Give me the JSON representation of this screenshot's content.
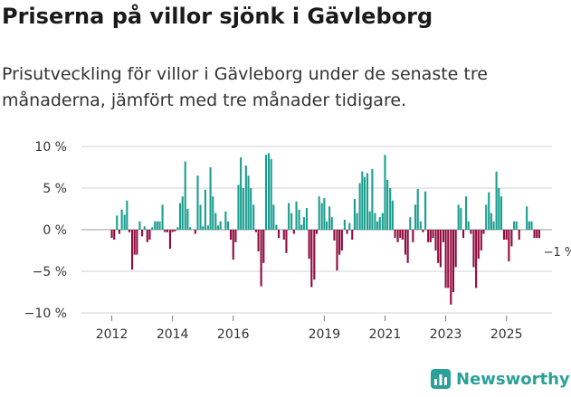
{
  "header": {
    "title": "Priserna på villor sjönk i Gävleborg",
    "subtitle": "Prisutveckling för villor i Gävleborg under de senaste tre månaderna, jämfört med tre månader tidigare."
  },
  "brand": {
    "name": "Newsworthy",
    "icon": "bar-chart-icon"
  },
  "colors": {
    "positive": "#1a9e8f",
    "negative": "#8f0a3d",
    "grid": "#d0d0d0",
    "text": "#333333",
    "brand": "#2aa198"
  },
  "chart_data": {
    "type": "bar",
    "title": "Priserna på villor sjönk i Gävleborg",
    "ylim": [
      -10,
      10
    ],
    "y_ticks": [
      10,
      5,
      0,
      -5,
      -10
    ],
    "y_tick_labels": [
      "10 %",
      "5 %",
      "0 %",
      "−5 %",
      "−10 %"
    ],
    "x_ticks": [
      2012,
      2014,
      2016,
      2019,
      2021,
      2023,
      2025
    ],
    "x_range": [
      2011.0,
      2026.5
    ],
    "annotation": {
      "label": "−1 %",
      "x": 2026.1,
      "y": -1
    },
    "points": [
      [
        2012.0,
        -1.0
      ],
      [
        2012.08,
        -1.2
      ],
      [
        2012.17,
        1.7
      ],
      [
        2012.25,
        -0.5
      ],
      [
        2012.33,
        2.4
      ],
      [
        2012.42,
        1.8
      ],
      [
        2012.5,
        3.5
      ],
      [
        2012.58,
        -0.3
      ],
      [
        2012.67,
        -4.8
      ],
      [
        2012.75,
        -3.0
      ],
      [
        2012.83,
        -3.0
      ],
      [
        2012.92,
        1.0
      ],
      [
        2013.0,
        -0.8
      ],
      [
        2013.08,
        0.4
      ],
      [
        2013.17,
        -1.5
      ],
      [
        2013.25,
        -1.2
      ],
      [
        2013.33,
        0.3
      ],
      [
        2013.42,
        1.0
      ],
      [
        2013.5,
        1.0
      ],
      [
        2013.58,
        1.0
      ],
      [
        2013.67,
        3.0
      ],
      [
        2013.75,
        -0.3
      ],
      [
        2013.83,
        -0.3
      ],
      [
        2013.92,
        -2.3
      ],
      [
        2014.0,
        -0.3
      ],
      [
        2014.08,
        -0.2
      ],
      [
        2014.17,
        0.3
      ],
      [
        2014.25,
        3.2
      ],
      [
        2014.33,
        4.0
      ],
      [
        2014.42,
        8.2
      ],
      [
        2014.5,
        2.5
      ],
      [
        2014.58,
        0.3
      ],
      [
        2014.67,
        0.0
      ],
      [
        2014.75,
        -0.5
      ],
      [
        2014.83,
        6.5
      ],
      [
        2014.92,
        3.0
      ],
      [
        2015.0,
        0.4
      ],
      [
        2015.08,
        4.8
      ],
      [
        2015.17,
        0.5
      ],
      [
        2015.25,
        7.5
      ],
      [
        2015.33,
        4.0
      ],
      [
        2015.42,
        2.0
      ],
      [
        2015.5,
        0.5
      ],
      [
        2015.58,
        1.0
      ],
      [
        2015.67,
        0.0
      ],
      [
        2015.75,
        2.2
      ],
      [
        2015.83,
        1.0
      ],
      [
        2015.92,
        -1.2
      ],
      [
        2016.0,
        -3.6
      ],
      [
        2016.08,
        -1.5
      ],
      [
        2016.17,
        5.4
      ],
      [
        2016.25,
        8.7
      ],
      [
        2016.33,
        5.0
      ],
      [
        2016.42,
        7.7
      ],
      [
        2016.5,
        6.5
      ],
      [
        2016.58,
        5.0
      ],
      [
        2016.67,
        3.0
      ],
      [
        2016.75,
        -0.3
      ],
      [
        2016.83,
        -2.6
      ],
      [
        2016.92,
        -6.8
      ],
      [
        2017.0,
        -4.0
      ],
      [
        2017.08,
        9.0
      ],
      [
        2017.17,
        9.2
      ],
      [
        2017.25,
        8.5
      ],
      [
        2017.33,
        3.0
      ],
      [
        2017.42,
        0.6
      ],
      [
        2017.5,
        -1.0
      ],
      [
        2017.58,
        0.0
      ],
      [
        2017.67,
        -1.2
      ],
      [
        2017.75,
        -2.8
      ],
      [
        2017.83,
        3.2
      ],
      [
        2017.92,
        2.0
      ],
      [
        2018.0,
        -0.5
      ],
      [
        2018.08,
        3.4
      ],
      [
        2018.17,
        2.4
      ],
      [
        2018.25,
        0.6
      ],
      [
        2018.33,
        1.5
      ],
      [
        2018.42,
        2.6
      ],
      [
        2018.5,
        -3.5
      ],
      [
        2018.58,
        -6.9
      ],
      [
        2018.67,
        -6.0
      ],
      [
        2018.75,
        -0.5
      ],
      [
        2018.83,
        4.0
      ],
      [
        2018.92,
        3.2
      ],
      [
        2019.0,
        3.8
      ],
      [
        2019.08,
        1.0
      ],
      [
        2019.17,
        2.8
      ],
      [
        2019.25,
        1.5
      ],
      [
        2019.33,
        -1.3
      ],
      [
        2019.42,
        -4.9
      ],
      [
        2019.5,
        -3.0
      ],
      [
        2019.58,
        -2.5
      ],
      [
        2019.67,
        1.2
      ],
      [
        2019.75,
        -0.5
      ],
      [
        2019.83,
        0.8
      ],
      [
        2019.92,
        -1.2
      ],
      [
        2020.0,
        3.7
      ],
      [
        2020.08,
        2.0
      ],
      [
        2020.17,
        5.6
      ],
      [
        2020.25,
        7.0
      ],
      [
        2020.33,
        6.3
      ],
      [
        2020.42,
        6.8
      ],
      [
        2020.5,
        2.2
      ],
      [
        2020.58,
        7.3
      ],
      [
        2020.67,
        2.0
      ],
      [
        2020.75,
        1.0
      ],
      [
        2020.83,
        1.5
      ],
      [
        2020.92,
        2.0
      ],
      [
        2021.0,
        9.0
      ],
      [
        2021.08,
        6.0
      ],
      [
        2021.17,
        5.0
      ],
      [
        2021.25,
        3.5
      ],
      [
        2021.33,
        -1.0
      ],
      [
        2021.42,
        -1.5
      ],
      [
        2021.5,
        -1.0
      ],
      [
        2021.58,
        -1.2
      ],
      [
        2021.67,
        -3.0
      ],
      [
        2021.75,
        -4.0
      ],
      [
        2021.83,
        1.5
      ],
      [
        2021.92,
        -1.5
      ],
      [
        2022.0,
        3.0
      ],
      [
        2022.08,
        4.9
      ],
      [
        2022.17,
        1.0
      ],
      [
        2022.25,
        -0.3
      ],
      [
        2022.33,
        4.6
      ],
      [
        2022.42,
        -1.5
      ],
      [
        2022.5,
        -1.5
      ],
      [
        2022.58,
        -1.0
      ],
      [
        2022.67,
        -2.5
      ],
      [
        2022.75,
        -4.0
      ],
      [
        2022.83,
        -4.5
      ],
      [
        2022.92,
        -1.5
      ],
      [
        2023.0,
        -7.0
      ],
      [
        2023.08,
        -7.0
      ],
      [
        2023.17,
        -9.0
      ],
      [
        2023.25,
        -7.5
      ],
      [
        2023.33,
        -4.5
      ],
      [
        2023.42,
        3.0
      ],
      [
        2023.5,
        2.6
      ],
      [
        2023.58,
        -1.0
      ],
      [
        2023.67,
        4.0
      ],
      [
        2023.75,
        1.0
      ],
      [
        2023.83,
        -0.5
      ],
      [
        2023.92,
        -4.5
      ],
      [
        2024.0,
        -7.0
      ],
      [
        2024.08,
        -3.5
      ],
      [
        2024.17,
        -2.5
      ],
      [
        2024.25,
        -0.5
      ],
      [
        2024.33,
        3.0
      ],
      [
        2024.42,
        4.5
      ],
      [
        2024.5,
        2.0
      ],
      [
        2024.58,
        1.0
      ],
      [
        2024.67,
        7.0
      ],
      [
        2024.75,
        5.0
      ],
      [
        2024.83,
        4.0
      ],
      [
        2024.92,
        -1.2
      ],
      [
        2025.0,
        -1.2
      ],
      [
        2025.08,
        -3.8
      ],
      [
        2025.17,
        -2.0
      ],
      [
        2025.25,
        1.0
      ],
      [
        2025.33,
        1.0
      ],
      [
        2025.42,
        -1.2
      ],
      [
        2025.5,
        0.0
      ],
      [
        2025.58,
        0.0
      ],
      [
        2025.67,
        2.8
      ],
      [
        2025.75,
        1.0
      ],
      [
        2025.83,
        1.0
      ],
      [
        2025.92,
        -1.0
      ],
      [
        2026.0,
        -1.0
      ],
      [
        2026.08,
        -1.0
      ]
    ]
  }
}
